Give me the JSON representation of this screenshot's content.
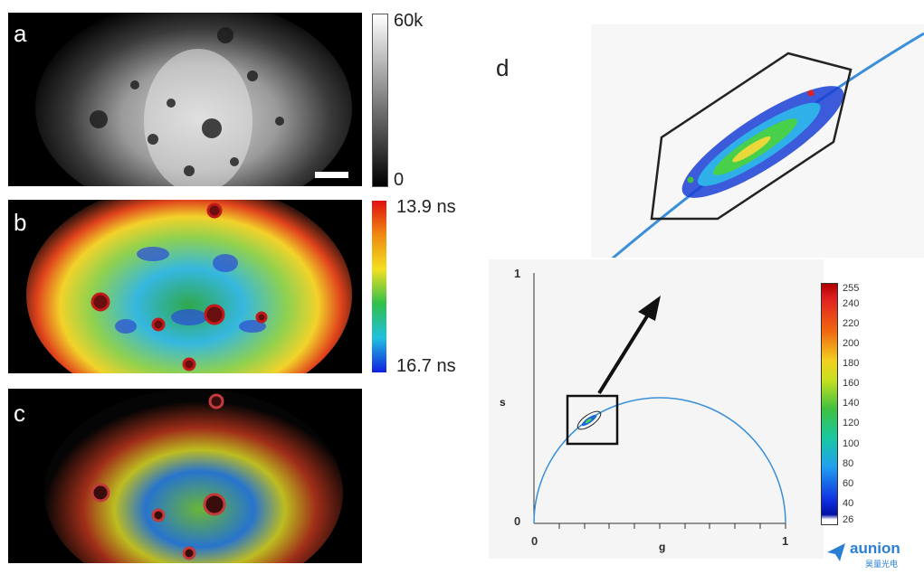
{
  "panels": {
    "a": {
      "letter": "a",
      "scale_max": "60k",
      "scale_min": "0"
    },
    "b": {
      "letter": "b",
      "scale_top": "13.9 ns",
      "scale_bottom": "16.7 ns"
    },
    "c": {
      "letter": "c"
    },
    "d": {
      "letter": "d"
    }
  },
  "phasor": {
    "y_axis_label": "s",
    "x_axis_label": "g",
    "y_ticks": [
      "1",
      "0"
    ],
    "x_ticks": [
      "0",
      "1"
    ],
    "count_colorbar_ticks": [
      "255",
      "240",
      "220",
      "200",
      "180",
      "160",
      "140",
      "120",
      "100",
      "80",
      "60",
      "40",
      "26"
    ]
  },
  "logo": {
    "name": "aunion",
    "sub": "昊量光电"
  },
  "colors": {
    "semicircle": "#3a8fd8",
    "accent": "#2a7fd4"
  }
}
